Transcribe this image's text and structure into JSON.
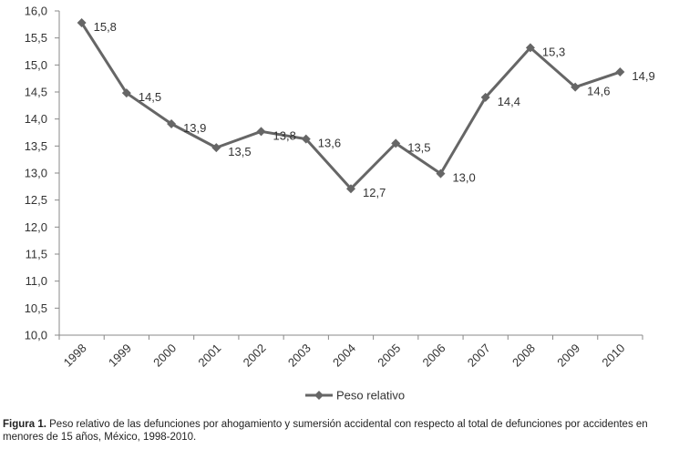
{
  "chart_data": {
    "type": "line",
    "title": "",
    "xlabel": "",
    "ylabel": "",
    "x": [
      "1998",
      "1999",
      "2000",
      "2001",
      "2002",
      "2003",
      "2004",
      "2005",
      "2006",
      "2007",
      "2008",
      "2009",
      "2010"
    ],
    "series": [
      {
        "name": "Peso relativo",
        "values": [
          15.8,
          14.5,
          13.9,
          13.5,
          13.8,
          13.6,
          12.7,
          13.5,
          13.0,
          14.4,
          15.3,
          14.6,
          14.9
        ],
        "point_y": [
          15.78,
          14.48,
          13.91,
          13.47,
          13.77,
          13.63,
          12.71,
          13.55,
          12.99,
          14.4,
          15.32,
          14.59,
          14.87
        ],
        "color": "#666666",
        "marker": "diamond"
      }
    ],
    "ylim": [
      10.0,
      16.0
    ],
    "yticks": [
      "10,0",
      "10,5",
      "11,0",
      "11,5",
      "12,0",
      "12,5",
      "13,0",
      "13,5",
      "14,0",
      "14,5",
      "15,0",
      "15,5",
      "16,0"
    ],
    "data_labels": [
      "15,8",
      "14,5",
      "13,9",
      "13,5",
      "13,8",
      "13,6",
      "12,7",
      "13,5",
      "13,0",
      "14,4",
      "15,3",
      "14,6",
      "14,9"
    ],
    "grid": false,
    "legend": "bottom"
  },
  "caption": {
    "lead": "Figura 1.",
    "text": "Peso relativo de las defunciones por ahogamiento y sumersión accidental con respecto al total de defunciones por accidentes en menores de 15  años,  México, 1998-2010."
  }
}
